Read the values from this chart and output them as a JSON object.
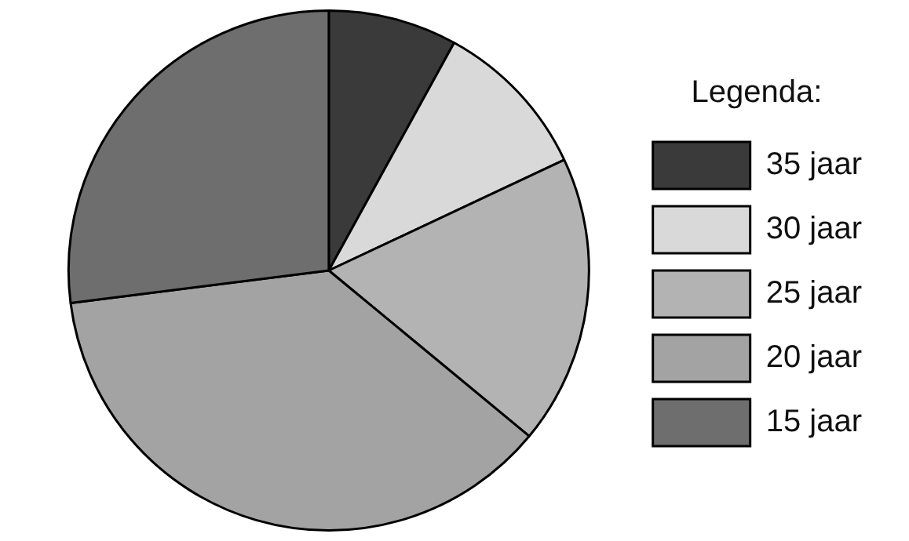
{
  "chart_data": {
    "type": "pie",
    "legend_title": "Legenda:",
    "legend": "right",
    "categories": [
      "35 jaar",
      "30 jaar",
      "25 jaar",
      "20 jaar",
      "15 jaar"
    ],
    "values": [
      8,
      10,
      18,
      37,
      27
    ],
    "colors": [
      "#3a3a3a",
      "#d9d9d9",
      "#b3b3b3",
      "#a3a3a3",
      "#6e6e6e"
    ]
  }
}
